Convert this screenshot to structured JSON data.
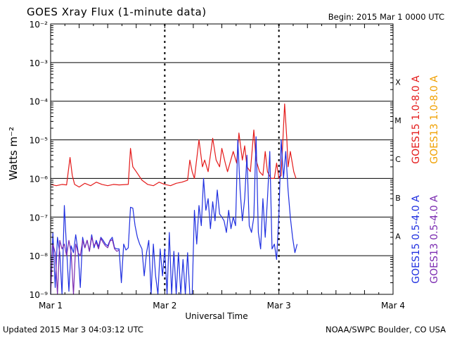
{
  "header": {
    "title": "GOES Xray Flux (1-minute data)",
    "begin": "Begin:  2015 Mar 1 0000 UTC"
  },
  "footer": {
    "updated": "Updated 2015 Mar  3 04:03:12 UTC",
    "credit": "NOAA/SWPC Boulder, CO USA"
  },
  "colors": {
    "goes15_long": "#e41a1a",
    "goes13_long": "#f0a000",
    "goes15_short": "#1f2fe0",
    "goes13_short": "#7a2ab0",
    "grid": "#000000"
  },
  "chart_data": {
    "type": "line",
    "title": "GOES Xray Flux (1-minute data)",
    "xlabel": "Universal Time",
    "ylabel": "Watts m⁻²",
    "y_scale": "log",
    "ylim": [
      1e-09,
      0.01
    ],
    "xlim": [
      0,
      3
    ],
    "x_ticks": [
      {
        "value": 0,
        "label": "Mar 1"
      },
      {
        "value": 1,
        "label": "Mar 2"
      },
      {
        "value": 2,
        "label": "Mar 3"
      },
      {
        "value": 3,
        "label": "Mar 4"
      }
    ],
    "y_ticks": [
      {
        "exp": -9,
        "label": "10⁻⁹"
      },
      {
        "exp": -8,
        "label": "10⁻⁸"
      },
      {
        "exp": -7,
        "label": "10⁻⁷"
      },
      {
        "exp": -6,
        "label": "10⁻⁶"
      },
      {
        "exp": -5,
        "label": "10⁻⁵"
      },
      {
        "exp": -4,
        "label": "10⁻⁴"
      },
      {
        "exp": -3,
        "label": "10⁻³"
      },
      {
        "exp": -2,
        "label": "10⁻²"
      }
    ],
    "flare_classes": [
      {
        "label": "X",
        "exp": -3.5
      },
      {
        "label": "M",
        "exp": -4.5
      },
      {
        "label": "C",
        "exp": -5.5
      },
      {
        "label": "B",
        "exp": -6.5
      },
      {
        "label": "A",
        "exp": -7.5
      }
    ],
    "legend": [
      {
        "name": "GOES15 1.0-8.0 A",
        "color": "#e41a1a"
      },
      {
        "name": "GOES13 1.0-8.0 A",
        "color": "#f0a000"
      },
      {
        "name": "GOES15 0.5-4.0 A",
        "color": "#1f2fe0"
      },
      {
        "name": "GOES13 0.5-4.0 A",
        "color": "#7a2ab0"
      }
    ],
    "series": [
      {
        "name": "GOES15 1.0-8.0 A",
        "color": "#e41a1a",
        "x": [
          0.0,
          0.05,
          0.1,
          0.14,
          0.17,
          0.19,
          0.21,
          0.25,
          0.3,
          0.35,
          0.4,
          0.45,
          0.5,
          0.55,
          0.6,
          0.68,
          0.7,
          0.72,
          0.75,
          0.8,
          0.85,
          0.9,
          0.95,
          1.0,
          1.05,
          1.1,
          1.15,
          1.2,
          1.22,
          1.24,
          1.26,
          1.3,
          1.33,
          1.35,
          1.38,
          1.42,
          1.45,
          1.48,
          1.5,
          1.53,
          1.55,
          1.6,
          1.63,
          1.65,
          1.68,
          1.7,
          1.72,
          1.75,
          1.78,
          1.8,
          1.83,
          1.86,
          1.88,
          1.9,
          1.93,
          1.96,
          1.98,
          2.0,
          2.02,
          2.05,
          2.07,
          2.08,
          2.1,
          2.13,
          2.15
        ],
        "y": [
          7e-07,
          6.5e-07,
          7e-07,
          6.8e-07,
          3.5e-06,
          1.2e-06,
          7e-07,
          6e-07,
          7.5e-07,
          6.5e-07,
          8e-07,
          7e-07,
          6.5e-07,
          7e-07,
          6.8e-07,
          7e-07,
          6e-06,
          2e-06,
          1.5e-06,
          9e-07,
          7e-07,
          6.5e-07,
          8e-07,
          7e-07,
          6.5e-07,
          7.5e-07,
          8e-07,
          9e-07,
          3e-06,
          1.5e-06,
          1e-06,
          1e-05,
          2e-06,
          3e-06,
          1.5e-06,
          1.1e-05,
          3e-06,
          2e-06,
          6e-06,
          2.5e-06,
          1.5e-06,
          5e-06,
          2.5e-06,
          1.5e-05,
          3e-06,
          7e-06,
          2e-06,
          1.5e-06,
          1.8e-05,
          3e-06,
          1.5e-06,
          1.2e-06,
          5e-06,
          1.5e-06,
          1e-06,
          1e-06,
          2.5e-06,
          1e-06,
          1.2e-06,
          8.5e-05,
          1e-05,
          2e-06,
          5e-06,
          1.5e-06,
          1e-06
        ]
      },
      {
        "name": "GOES13 1.0-8.0 A",
        "color": "#f0a000",
        "x": [],
        "y": []
      },
      {
        "name": "GOES15 0.5-4.0 A",
        "color": "#1f2fe0",
        "x": [
          0.0,
          0.02,
          0.04,
          0.06,
          0.08,
          0.1,
          0.12,
          0.14,
          0.16,
          0.18,
          0.2,
          0.22,
          0.24,
          0.26,
          0.28,
          0.3,
          0.32,
          0.34,
          0.36,
          0.38,
          0.4,
          0.42,
          0.44,
          0.46,
          0.48,
          0.5,
          0.52,
          0.54,
          0.56,
          0.58,
          0.6,
          0.62,
          0.64,
          0.66,
          0.68,
          0.7,
          0.72,
          0.74,
          0.76,
          0.78,
          0.8,
          0.82,
          0.84,
          0.86,
          0.88,
          0.9,
          0.92,
          0.94,
          0.96,
          0.98,
          1.0,
          1.02,
          1.04,
          1.06,
          1.08,
          1.1,
          1.12,
          1.14,
          1.16,
          1.18,
          1.2,
          1.22,
          1.24,
          1.26,
          1.28,
          1.3,
          1.32,
          1.34,
          1.36,
          1.38,
          1.4,
          1.42,
          1.44,
          1.46,
          1.48,
          1.5,
          1.52,
          1.54,
          1.56,
          1.58,
          1.6,
          1.62,
          1.64,
          1.66,
          1.68,
          1.7,
          1.72,
          1.74,
          1.76,
          1.78,
          1.8,
          1.82,
          1.84,
          1.86,
          1.88,
          1.9,
          1.92,
          1.94,
          1.96,
          1.98,
          2.0,
          2.02,
          2.04,
          2.06,
          2.08,
          2.1,
          2.12,
          2.14,
          2.16
        ],
        "y": [
          1e-09,
          4e-08,
          1.5e-09,
          3e-08,
          1.2e-08,
          1e-09,
          2e-07,
          1.5e-08,
          1.2e-09,
          1.8e-08,
          1.2e-08,
          3.5e-08,
          1.3e-08,
          1.5e-09,
          3e-08,
          1.6e-08,
          2.5e-08,
          1.3e-08,
          3.5e-08,
          1.6e-08,
          2.5e-08,
          1.7e-08,
          3e-08,
          2.5e-08,
          2e-08,
          1.8e-08,
          2.5e-08,
          3e-08,
          1.6e-08,
          1.5e-08,
          1.5e-08,
          2e-09,
          2e-08,
          1.4e-08,
          1.6e-08,
          1.8e-07,
          1.7e-07,
          6e-08,
          3e-08,
          2e-08,
          1.5e-08,
          3e-09,
          1.2e-08,
          2.5e-08,
          1e-09,
          2e-08,
          3e-09,
          1e-09,
          1.5e-08,
          3e-09,
          1.5e-08,
          1e-09,
          4e-08,
          1e-09,
          1.3e-08,
          1e-09,
          1.2e-08,
          1e-09,
          8e-09,
          1e-09,
          1.2e-08,
          1e-09,
          1e-09,
          1.5e-07,
          2e-08,
          2e-07,
          6e-08,
          1e-06,
          1.5e-07,
          3e-07,
          5e-08,
          2.5e-07,
          8e-08,
          5e-07,
          1.2e-07,
          1e-07,
          8e-08,
          4e-08,
          1.5e-07,
          5e-08,
          1e-07,
          6e-08,
          1e-05,
          5e-07,
          8e-08,
          3e-07,
          4e-06,
          6e-08,
          4e-08,
          1e-07,
          1.2e-05,
          4e-08,
          1.5e-08,
          3e-07,
          3e-08,
          3e-07,
          5e-06,
          1.5e-08,
          2e-08,
          8e-09,
          1.2e-07,
          1e-05,
          1e-06,
          5e-06,
          5e-07,
          1e-07,
          3e-08,
          1.2e-08,
          2e-08
        ]
      },
      {
        "name": "GOES13 0.5-4.0 A",
        "color": "#7a2ab0",
        "x": [
          0.0,
          0.02,
          0.04,
          0.06,
          0.08,
          0.1,
          0.12,
          0.14,
          0.16,
          0.18,
          0.2,
          0.22,
          0.24,
          0.26,
          0.28,
          0.3,
          0.32,
          0.34,
          0.36,
          0.38,
          0.4,
          0.42,
          0.44,
          0.46,
          0.48,
          0.5,
          0.52,
          0.54,
          0.56,
          0.58,
          0.6
        ],
        "y": [
          1e-09,
          2e-08,
          1.2e-08,
          1e-09,
          2.5e-08,
          1.5e-08,
          2e-08,
          1e-08,
          2.5e-08,
          1.2e-08,
          1e-09,
          2e-08,
          1.2e-08,
          1e-08,
          2.5e-08,
          1.6e-08,
          2.5e-08,
          1.3e-08,
          3e-08,
          1.8e-08,
          2.2e-08,
          1.5e-08,
          2.8e-08,
          2.2e-08,
          1.8e-08,
          1.6e-08,
          2.4e-08,
          2.6e-08,
          1.5e-08,
          1.3e-08,
          1.4e-08
        ]
      }
    ],
    "grid": true
  }
}
